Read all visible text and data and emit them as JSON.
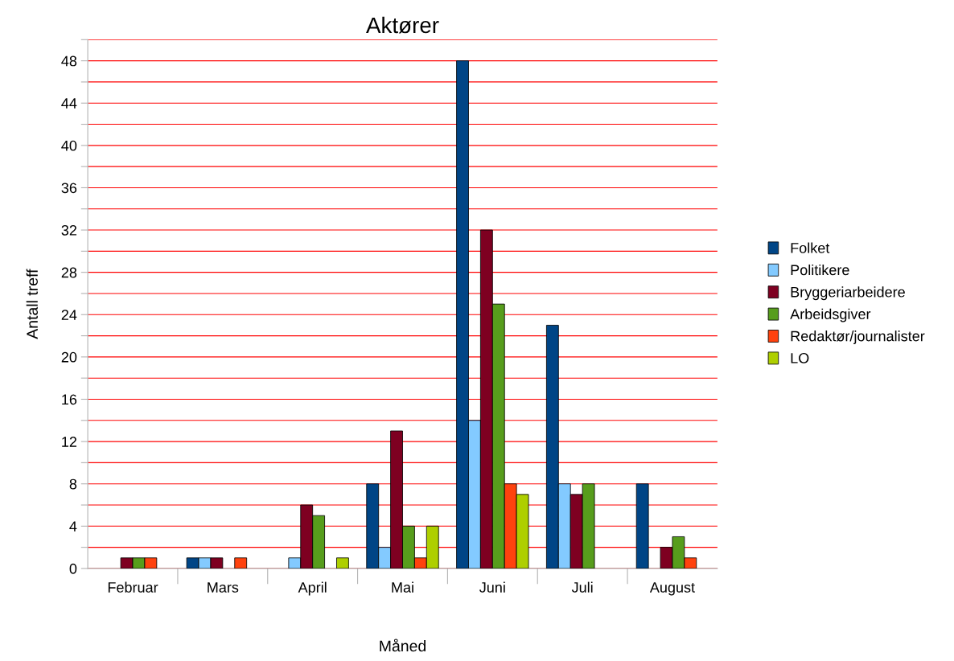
{
  "chart_data": {
    "type": "bar",
    "title": "Aktører",
    "xlabel": "Måned",
    "ylabel": "Antall treff",
    "categories": [
      "Februar",
      "Mars",
      "April",
      "Mai",
      "Juni",
      "Juli",
      "August"
    ],
    "series": [
      {
        "name": "Folket",
        "color": "#004586",
        "values": [
          0,
          1,
          0,
          8,
          48,
          23,
          8
        ]
      },
      {
        "name": "Politikere",
        "color": "#83caff",
        "values": [
          0,
          1,
          1,
          2,
          14,
          8,
          0
        ]
      },
      {
        "name": "Bryggeriarbeidere",
        "color": "#7e0021",
        "values": [
          1,
          1,
          6,
          13,
          32,
          7,
          2
        ]
      },
      {
        "name": "Arbeidsgiver",
        "color": "#579d1c",
        "values": [
          1,
          0,
          5,
          4,
          25,
          8,
          3
        ]
      },
      {
        "name": "Redaktør/journalister",
        "color": "#ff420e",
        "values": [
          1,
          1,
          0,
          1,
          8,
          0,
          1
        ]
      },
      {
        "name": "LO",
        "color": "#aecf00",
        "values": [
          0,
          0,
          1,
          4,
          7,
          0,
          0
        ]
      }
    ],
    "ylim": [
      0,
      50
    ],
    "yticks": [
      0,
      {
        "value": 2,
        "label": null
      },
      4,
      {
        "value": 6,
        "label": null
      },
      8,
      {
        "value": 10,
        "label": null
      },
      12,
      {
        "value": 14,
        "label": null
      },
      16,
      {
        "value": 18,
        "label": null
      },
      20,
      {
        "value": 22,
        "label": null
      },
      24,
      {
        "value": 26,
        "label": null
      },
      28,
      {
        "value": 30,
        "label": null
      },
      32,
      {
        "value": 34,
        "label": null
      },
      36,
      {
        "value": 38,
        "label": null
      },
      40,
      {
        "value": 42,
        "label": null
      },
      44,
      {
        "value": 46,
        "label": null
      },
      48,
      {
        "value": 50,
        "label": null
      }
    ],
    "grid": "y",
    "legend": "right"
  }
}
